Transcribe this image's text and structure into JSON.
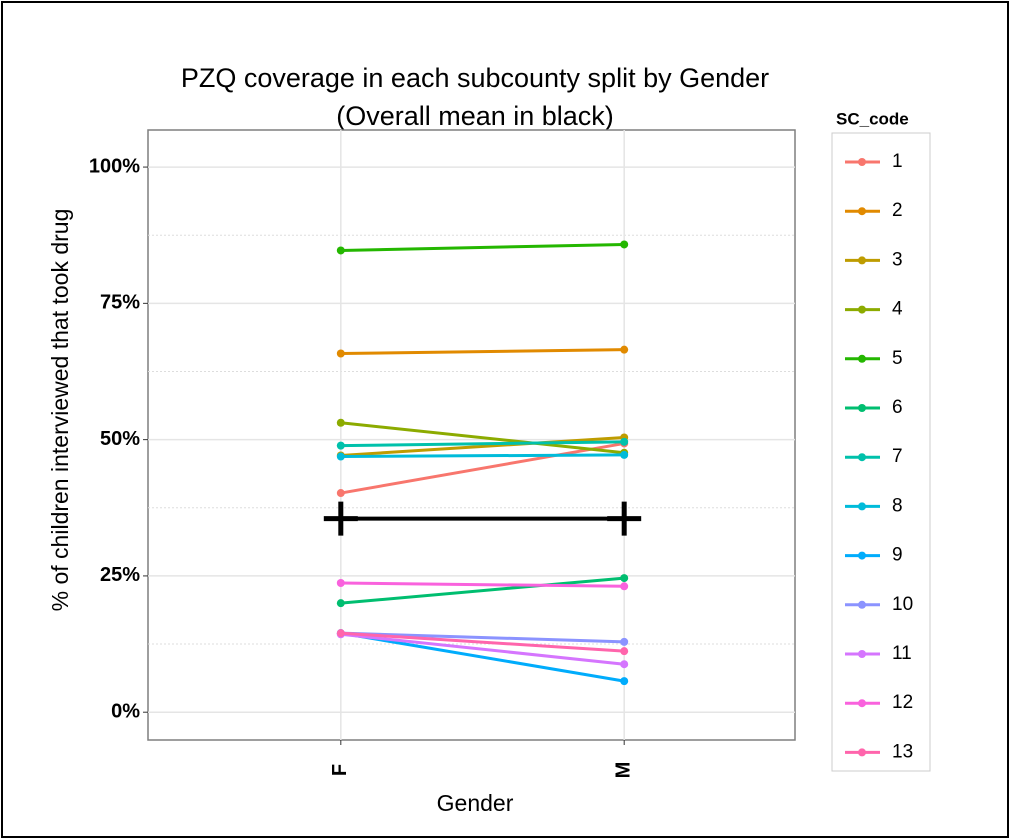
{
  "chart_data": {
    "type": "line",
    "title": "PZQ coverage in each subcounty split by Gender",
    "subtitle": "(Overall mean in black)",
    "x_label": "Gender",
    "y_label": "% of children interviewed that took drug",
    "legend_title": "SC_code",
    "categories": [
      "F",
      "M"
    ],
    "ylim": [
      -5.1,
      106.8
    ],
    "yticks": [
      {
        "value": 0,
        "label": "0%"
      },
      {
        "value": 25,
        "label": "25%"
      },
      {
        "value": 50,
        "label": "50%"
      },
      {
        "value": 75,
        "label": "75%"
      },
      {
        "value": 100,
        "label": "100%"
      }
    ],
    "minor_yticks": [
      12.5,
      37.5,
      62.5,
      87.5
    ],
    "grid": true,
    "legend": "right",
    "series": [
      {
        "name": "1",
        "color": "#F8766D",
        "values": [
          40.2,
          49.3
        ]
      },
      {
        "name": "2",
        "color": "#E18A00",
        "values": [
          65.8,
          66.5
        ]
      },
      {
        "name": "3",
        "color": "#BE9C00",
        "values": [
          47.1,
          50.4
        ]
      },
      {
        "name": "4",
        "color": "#8CAB00",
        "values": [
          53.1,
          47.6
        ]
      },
      {
        "name": "5",
        "color": "#24B700",
        "values": [
          84.7,
          85.8
        ]
      },
      {
        "name": "6",
        "color": "#00BE70",
        "values": [
          20.0,
          24.6
        ]
      },
      {
        "name": "7",
        "color": "#00C1AB",
        "values": [
          48.9,
          49.6
        ]
      },
      {
        "name": "8",
        "color": "#00BBDA",
        "values": [
          46.9,
          47.2
        ]
      },
      {
        "name": "9",
        "color": "#00ACFC",
        "values": [
          14.5,
          5.7
        ]
      },
      {
        "name": "10",
        "color": "#8B93FF",
        "values": [
          14.5,
          12.9
        ]
      },
      {
        "name": "11",
        "color": "#D575FE",
        "values": [
          14.3,
          8.8
        ]
      },
      {
        "name": "12",
        "color": "#F962DD",
        "values": [
          23.7,
          23.1
        ]
      },
      {
        "name": "13",
        "color": "#FF65AC",
        "values": [
          14.5,
          11.2
        ]
      }
    ],
    "mean": {
      "color": "#000000",
      "values": [
        35.5,
        35.5
      ]
    }
  }
}
